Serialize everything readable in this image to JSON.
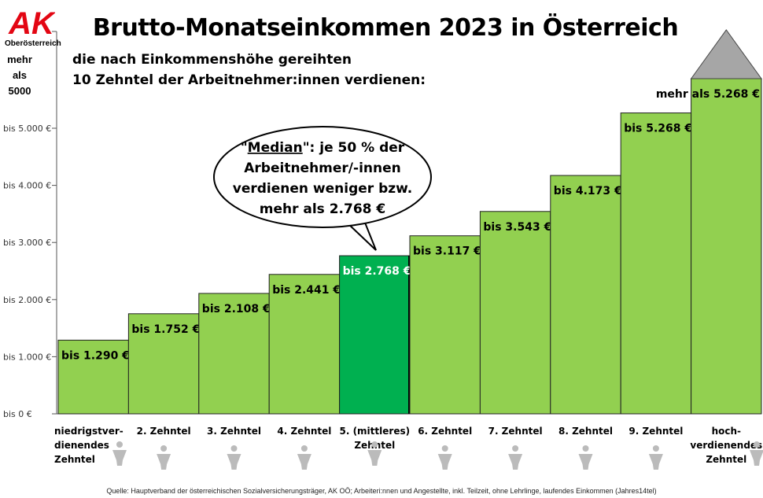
{
  "logo": {
    "text": "AK",
    "region": "Oberösterreich",
    "color": "#e30613"
  },
  "header": {
    "title": "Brutto-Monatseinkommen 2023 in Österreich",
    "subtitle1": "die nach Einkommenshöhe gereihten",
    "subtitle2": "10 Zehntel der Arbeitnehmer:innen verdienen:"
  },
  "top_axis_label": "mehr als 5000",
  "callout": {
    "line1_prefix": "\"",
    "line1_emph": "Median",
    "line1_suffix": "\": je 50 % der",
    "line2": "Arbeitnehmer/-innen",
    "line3": "verdienen weniger bzw.",
    "line4": "mehr als 2.768 €"
  },
  "source": "Quelle: Hauptverband der österreichischen Sozialversicherungsträger, AK OÖ; Arbeiteri:nnen und Angestellte, inkl. Teilzeit, ohne Lehrlinge, laufendes Einkommen (Jahres14tel)",
  "chart_data": {
    "type": "bar",
    "title": "Brutto-Monatseinkommen 2023 in Österreich",
    "ylim": [
      0,
      5000
    ],
    "yticks": [
      0,
      1000,
      2000,
      3000,
      4000,
      5000
    ],
    "ytick_labels": [
      "bis 0 €",
      "bis 1.000 €",
      "bis 2.000 €",
      "bis 3.000 €",
      "bis 4.000 €",
      "bis 5.000 €"
    ],
    "categories": [
      "niedrigstver-dienendes Zehntel",
      "2. Zehntel",
      "3. Zehntel",
      "4. Zehntel",
      "5. (mittleres) Zehntel",
      "6. Zehntel",
      "7. Zehntel",
      "8. Zehntel",
      "9. Zehntel",
      "hoch-verdienendes Zehntel"
    ],
    "category_lines": [
      [
        "niedrigstver-",
        "dienendes",
        "Zehntel"
      ],
      [
        "2. Zehntel"
      ],
      [
        "3. Zehntel"
      ],
      [
        "4. Zehntel"
      ],
      [
        "5. (mittleres)",
        "Zehntel"
      ],
      [
        "6. Zehntel"
      ],
      [
        "7. Zehntel"
      ],
      [
        "8. Zehntel"
      ],
      [
        "9. Zehntel"
      ],
      [
        "hoch-",
        "verdienendes",
        "Zehntel"
      ]
    ],
    "values": [
      1290,
      1752,
      2108,
      2441,
      2768,
      3117,
      3543,
      4173,
      5268,
      null
    ],
    "data_labels": [
      "bis 1.290 €",
      "bis 1.752 €",
      "bis 2.108 €",
      "bis 2.441 €",
      "bis 2.768 €",
      "bis 3.117 €",
      "bis 3.543 €",
      "bis 4.173 €",
      "bis 5.268 €",
      "mehr als 5.268 €"
    ],
    "bar_color": "#92d050",
    "median_color": "#00b050",
    "median_index": 4,
    "open_top_color": "#a6a6a6",
    "grid": false
  }
}
